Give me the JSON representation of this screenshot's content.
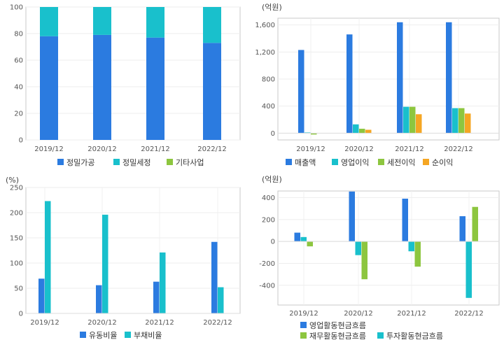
{
  "chart_data": [
    {
      "type": "bar",
      "stacked": true,
      "categories": [
        "2019/12",
        "2020/12",
        "2021/12",
        "2022/12"
      ],
      "ylim": [
        0,
        100
      ],
      "yticks": [
        0,
        20,
        40,
        60,
        80,
        100
      ],
      "yunit": "",
      "grid": true,
      "legend_position": "bottom",
      "series": [
        {
          "name": "정밀가공",
          "color": "#2b7be0",
          "values": [
            78,
            79,
            77,
            73
          ]
        },
        {
          "name": "정밀세정",
          "color": "#19c0cc",
          "values": [
            22,
            21,
            23,
            27
          ]
        },
        {
          "name": "기타사업",
          "color": "#8dc63f",
          "values": [
            0,
            0,
            0,
            0
          ]
        }
      ]
    },
    {
      "type": "bar",
      "stacked": false,
      "categories": [
        "2019/12",
        "2020/12",
        "2021/12",
        "2022/12"
      ],
      "ylim": [
        -100,
        1700
      ],
      "yticks": [
        0,
        400,
        800,
        1200,
        1600
      ],
      "ytick_labels": [
        "0",
        "400",
        "800",
        "1,200",
        "1,600"
      ],
      "yunit": "(억원)",
      "grid": true,
      "legend_position": "bottom",
      "series": [
        {
          "name": "매출액",
          "color": "#2b7be0",
          "values": [
            1230,
            1460,
            1640,
            1640
          ]
        },
        {
          "name": "영업이익",
          "color": "#19c0cc",
          "values": [
            10,
            130,
            390,
            370
          ]
        },
        {
          "name": "세전이익",
          "color": "#8dc63f",
          "values": [
            -20,
            65,
            390,
            370
          ]
        },
        {
          "name": "순이익",
          "color": "#f5a623",
          "values": [
            null,
            50,
            280,
            290
          ]
        }
      ]
    },
    {
      "type": "bar",
      "stacked": false,
      "categories": [
        "2019/12",
        "2020/12",
        "2021/12",
        "2022/12"
      ],
      "ylim": [
        0,
        250
      ],
      "yticks": [
        0,
        50,
        100,
        150,
        200,
        250
      ],
      "yunit": "(%)",
      "grid": true,
      "legend_position": "bottom",
      "series": [
        {
          "name": "유동비율",
          "color": "#2b7be0",
          "values": [
            69,
            56,
            63,
            142
          ]
        },
        {
          "name": "부채비율",
          "color": "#19c0cc",
          "values": [
            223,
            196,
            121,
            52
          ]
        }
      ]
    },
    {
      "type": "bar",
      "stacked": false,
      "categories": [
        "2019/12",
        "2020/12",
        "2021/12",
        "2022/12"
      ],
      "ylim": [
        -580,
        460
      ],
      "yticks": [
        -400,
        -200,
        0,
        200,
        400
      ],
      "yunit": "(억원)",
      "grid": true,
      "legend_position": "bottom",
      "series": [
        {
          "name": "영업활동현금흐름",
          "color": "#2b7be0",
          "values": [
            80,
            455,
            390,
            230
          ]
        },
        {
          "name": "투자활동현금흐름",
          "color": "#19c0cc",
          "values": [
            40,
            -125,
            -90,
            -515
          ]
        },
        {
          "name": "재무활동현금흐름",
          "color": "#8dc63f",
          "values": [
            -45,
            -345,
            -230,
            315
          ]
        }
      ]
    }
  ]
}
